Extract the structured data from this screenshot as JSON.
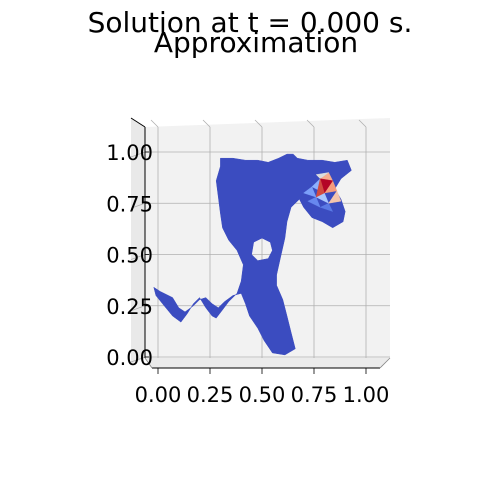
{
  "figure": {
    "suptitle": "Solution at t = 0.000 s.",
    "title": "Approximation"
  },
  "chart_data": {
    "type": "heatmap",
    "title": "Approximation",
    "xlabel": "",
    "ylabel": "",
    "xlim": [
      0.0,
      1.0
    ],
    "ylim": [
      0.0,
      1.0
    ],
    "x_ticks": [
      "0.00",
      "0.25",
      "0.50",
      "0.75",
      "1.00"
    ],
    "y_ticks": [
      "0.00",
      "0.25",
      "0.50",
      "0.75",
      "1.00"
    ],
    "grid": true,
    "colormap": "coolwarm",
    "background_value_color": "#3b4cc0",
    "pane_color": "#f2f2f2",
    "grid_color": "#b0b0b0",
    "domain_boundary": [
      [
        0.3,
        0.97
      ],
      [
        0.36,
        0.97
      ],
      [
        0.42,
        0.96
      ],
      [
        0.48,
        0.96
      ],
      [
        0.53,
        0.95
      ],
      [
        0.58,
        0.97
      ],
      [
        0.62,
        0.99
      ],
      [
        0.65,
        0.99
      ],
      [
        0.67,
        0.97
      ],
      [
        0.72,
        0.96
      ],
      [
        0.79,
        0.96
      ],
      [
        0.85,
        0.95
      ],
      [
        0.91,
        0.96
      ],
      [
        0.93,
        0.91
      ],
      [
        0.88,
        0.87
      ],
      [
        0.85,
        0.82
      ],
      [
        0.88,
        0.77
      ],
      [
        0.9,
        0.71
      ],
      [
        0.89,
        0.66
      ],
      [
        0.84,
        0.63
      ],
      [
        0.79,
        0.66
      ],
      [
        0.74,
        0.68
      ],
      [
        0.7,
        0.73
      ],
      [
        0.68,
        0.77
      ],
      [
        0.64,
        0.73
      ],
      [
        0.62,
        0.66
      ],
      [
        0.61,
        0.58
      ],
      [
        0.59,
        0.49
      ],
      [
        0.57,
        0.4
      ],
      [
        0.57,
        0.35
      ],
      [
        0.6,
        0.28
      ],
      [
        0.62,
        0.2
      ],
      [
        0.64,
        0.12
      ],
      [
        0.66,
        0.04
      ],
      [
        0.61,
        0.01
      ],
      [
        0.55,
        0.02
      ],
      [
        0.51,
        0.08
      ],
      [
        0.48,
        0.14
      ],
      [
        0.44,
        0.2
      ],
      [
        0.42,
        0.26
      ],
      [
        0.4,
        0.31
      ],
      [
        0.36,
        0.3
      ],
      [
        0.32,
        0.27
      ],
      [
        0.29,
        0.24
      ],
      [
        0.26,
        0.26
      ],
      [
        0.23,
        0.29
      ],
      [
        0.2,
        0.28
      ],
      [
        0.17,
        0.25
      ],
      [
        0.13,
        0.22
      ],
      [
        0.1,
        0.24
      ],
      [
        0.07,
        0.29
      ],
      [
        0.01,
        0.32
      ],
      [
        -0.02,
        0.34
      ],
      [
        -0.01,
        0.3
      ],
      [
        0.03,
        0.25
      ],
      [
        0.07,
        0.2
      ],
      [
        0.11,
        0.17
      ],
      [
        0.14,
        0.21
      ],
      [
        0.17,
        0.26
      ],
      [
        0.2,
        0.29
      ],
      [
        0.23,
        0.24
      ],
      [
        0.26,
        0.2
      ],
      [
        0.28,
        0.19
      ],
      [
        0.31,
        0.23
      ],
      [
        0.34,
        0.27
      ],
      [
        0.38,
        0.31
      ],
      [
        0.4,
        0.37
      ],
      [
        0.41,
        0.45
      ],
      [
        0.38,
        0.52
      ],
      [
        0.34,
        0.57
      ],
      [
        0.31,
        0.63
      ],
      [
        0.3,
        0.7
      ],
      [
        0.29,
        0.78
      ],
      [
        0.28,
        0.86
      ],
      [
        0.3,
        0.93
      ]
    ],
    "holes": [
      [
        [
          0.46,
          0.56
        ],
        [
          0.5,
          0.58
        ],
        [
          0.54,
          0.56
        ],
        [
          0.55,
          0.52
        ],
        [
          0.53,
          0.48
        ],
        [
          0.48,
          0.47
        ],
        [
          0.45,
          0.5
        ]
      ]
    ],
    "hotspot_triangles": [
      {
        "points": [
          [
            0.74,
            0.83
          ],
          [
            0.78,
            0.87
          ],
          [
            0.8,
            0.8
          ]
        ],
        "value": 0.45,
        "color": "#8db0fe"
      },
      {
        "points": [
          [
            0.7,
            0.8
          ],
          [
            0.74,
            0.83
          ],
          [
            0.76,
            0.78
          ]
        ],
        "value": 0.4,
        "color": "#7b9ff9"
      },
      {
        "points": [
          [
            0.72,
            0.76
          ],
          [
            0.76,
            0.78
          ],
          [
            0.78,
            0.73
          ]
        ],
        "value": 0.35,
        "color": "#6788ee"
      },
      {
        "points": [
          [
            0.76,
            0.78
          ],
          [
            0.8,
            0.8
          ],
          [
            0.82,
            0.75
          ]
        ],
        "value": 0.5,
        "color": "#aac7fd"
      },
      {
        "points": [
          [
            0.78,
            0.73
          ],
          [
            0.82,
            0.75
          ],
          [
            0.84,
            0.71
          ]
        ],
        "value": 0.3,
        "color": "#5b7ae5"
      },
      {
        "points": [
          [
            0.8,
            0.8
          ],
          [
            0.84,
            0.86
          ],
          [
            0.86,
            0.81
          ]
        ],
        "value": 0.75,
        "color": "#f59c7d"
      },
      {
        "points": [
          [
            0.82,
            0.75
          ],
          [
            0.86,
            0.81
          ],
          [
            0.88,
            0.76
          ]
        ],
        "value": 0.65,
        "color": "#f4c5ad"
      },
      {
        "points": [
          [
            0.78,
            0.87
          ],
          [
            0.84,
            0.86
          ],
          [
            0.82,
            0.9
          ]
        ],
        "value": 0.7,
        "color": "#f7ac8e"
      },
      {
        "points": [
          [
            0.78,
            0.87
          ],
          [
            0.82,
            0.9
          ],
          [
            0.76,
            0.89
          ]
        ],
        "value": 0.6,
        "color": "#dcdddd"
      },
      {
        "points": [
          [
            0.8,
            0.8
          ],
          [
            0.84,
            0.86
          ],
          [
            0.78,
            0.87
          ]
        ],
        "value": 1.0,
        "color": "#b40426"
      },
      {
        "points": [
          [
            0.76,
            0.78
          ],
          [
            0.8,
            0.8
          ],
          [
            0.78,
            0.87
          ]
        ],
        "value": 0.9,
        "color": "#d24b40"
      }
    ]
  }
}
